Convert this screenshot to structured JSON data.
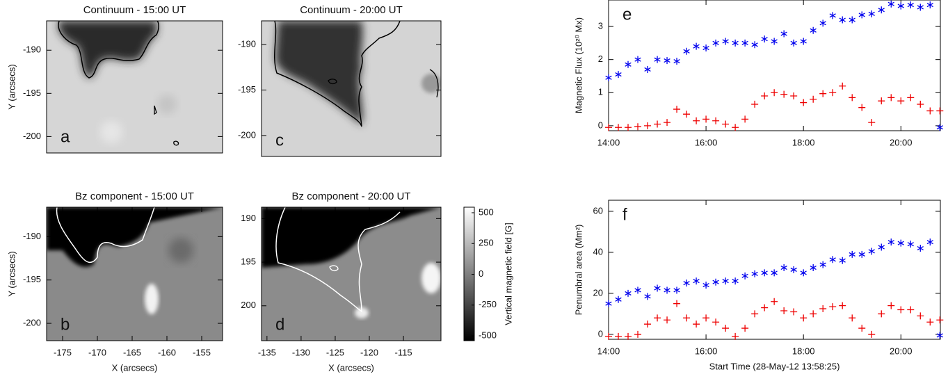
{
  "chart_data": [
    {
      "type": "image",
      "title": "Continuum - 15:00 UT",
      "ylabel": "Y (arcsecs)",
      "ylim": [
        -201.9,
        -186.6
      ],
      "yticks": [
        -190,
        -195,
        -200
      ],
      "label": "a"
    },
    {
      "type": "image",
      "title": "Bz component - 15:00 UT",
      "ylabel": "Y (arcsecs)",
      "xlabel": "X (arcsecs)",
      "xlim": [
        -177.3,
        -152.0
      ],
      "xticks": [
        -175,
        -170,
        -165,
        -160,
        -155
      ],
      "ylim": [
        -202.0,
        -186.6
      ],
      "yticks": [
        -190,
        -195,
        -200
      ],
      "label": "b"
    },
    {
      "type": "image",
      "title": "Continuum - 20:00 UT",
      "ylim": [
        -202.3,
        -187.4
      ],
      "yticks": [
        -190,
        -195,
        -200
      ],
      "label": "c"
    },
    {
      "type": "image",
      "title": "Bz component - 20:00 UT",
      "xlabel": "X (arcsecs)",
      "xlim": [
        -135.8,
        -109.5
      ],
      "xticks": [
        -135,
        -130,
        -125,
        -120,
        -115
      ],
      "ylim": [
        204.0,
        188.7
      ],
      "yticks": [
        190,
        195,
        200
      ],
      "label": "d"
    },
    {
      "type": "colorbar",
      "ylabel": "Vertical magnetic field [G]",
      "ylim": [
        -539,
        545
      ],
      "yticks": [
        500,
        250,
        0,
        -250,
        -500
      ]
    },
    {
      "type": "scatter",
      "ylabel": "Magnetic Flux (10²⁰ Mx)",
      "label": "e",
      "x": [
        14.0,
        14.2,
        14.4,
        14.6,
        14.8,
        15.0,
        15.2,
        15.4,
        15.6,
        15.8,
        16.0,
        16.2,
        16.4,
        16.6,
        16.8,
        17.0,
        17.2,
        17.4,
        17.6,
        17.8,
        18.0,
        18.2,
        18.4,
        18.6,
        18.8,
        19.0,
        19.2,
        19.4,
        19.6,
        19.8,
        20.0,
        20.2,
        20.4,
        20.6,
        20.8
      ],
      "xlim": [
        14,
        20.81
      ],
      "xticks": [
        {
          "value": 14,
          "label": "14:00"
        },
        {
          "value": 16,
          "label": "16:00"
        },
        {
          "value": 18,
          "label": "18:00"
        },
        {
          "value": 20,
          "label": "20:00"
        }
      ],
      "ylim": [
        -0.15,
        3.8
      ],
      "yticks": [
        0,
        1,
        2,
        3
      ],
      "series": [
        {
          "color": "#0000ee",
          "marker": "asterisk",
          "values": [
            1.45,
            1.55,
            1.85,
            2.0,
            1.7,
            2.0,
            1.97,
            1.95,
            2.25,
            2.4,
            2.35,
            2.5,
            2.55,
            2.5,
            2.5,
            2.45,
            2.62,
            2.55,
            2.78,
            2.5,
            2.55,
            2.88,
            3.1,
            3.33,
            3.2,
            3.2,
            3.35,
            3.38,
            3.5,
            3.68,
            3.62,
            3.65,
            3.58,
            3.65,
            -0.05
          ]
        },
        {
          "color": "#ee0000",
          "marker": "plus",
          "values": [
            -0.05,
            -0.05,
            -0.05,
            -0.03,
            0.0,
            0.05,
            0.1,
            0.5,
            0.35,
            0.15,
            0.2,
            0.15,
            0.05,
            -0.05,
            0.2,
            0.65,
            0.9,
            1.0,
            0.95,
            0.9,
            0.7,
            0.8,
            0.97,
            1.0,
            1.2,
            0.85,
            0.55,
            0.1,
            0.75,
            0.85,
            0.75,
            0.85,
            0.65,
            0.45,
            0.45
          ]
        }
      ]
    },
    {
      "type": "scatter",
      "ylabel": "Penumbral area (Mm²)",
      "xlabel": "Start Time (28-May-12 13:58:25)",
      "label": "f",
      "x": [
        14.0,
        14.2,
        14.4,
        14.6,
        14.8,
        15.0,
        15.2,
        15.4,
        15.6,
        15.8,
        16.0,
        16.2,
        16.4,
        16.6,
        16.8,
        17.0,
        17.2,
        17.4,
        17.6,
        17.8,
        18.0,
        18.2,
        18.4,
        18.6,
        18.8,
        19.0,
        19.2,
        19.4,
        19.6,
        19.8,
        20.0,
        20.2,
        20.4,
        20.6,
        20.8
      ],
      "xlim": [
        14,
        20.81
      ],
      "xticks": [
        {
          "value": 14,
          "label": "14:00"
        },
        {
          "value": 16,
          "label": "16:00"
        },
        {
          "value": 18,
          "label": "18:00"
        },
        {
          "value": 20,
          "label": "20:00"
        }
      ],
      "ylim": [
        -2.4,
        65.4
      ],
      "yticks": [
        0,
        20,
        40,
        60
      ],
      "series": [
        {
          "color": "#0000ee",
          "marker": "asterisk",
          "values": [
            15,
            17,
            20,
            21.5,
            18.5,
            22.5,
            21.5,
            21.5,
            25,
            26,
            24,
            25.5,
            26,
            26,
            28.5,
            29.5,
            30,
            30,
            32.5,
            31.5,
            30,
            32.5,
            34,
            36.5,
            36,
            39,
            39,
            40.5,
            42.5,
            45,
            44.5,
            44,
            42,
            45,
            -0.5
          ]
        },
        {
          "color": "#ee0000",
          "marker": "plus",
          "values": [
            -1,
            -1,
            -1,
            0,
            5,
            8,
            7,
            15,
            8,
            5,
            8,
            6,
            3,
            -1,
            3,
            10,
            13,
            16,
            11.5,
            11,
            8,
            10,
            12.5,
            13.5,
            14,
            8,
            3,
            0,
            10,
            14,
            12,
            12,
            9,
            6,
            7
          ]
        }
      ]
    }
  ]
}
